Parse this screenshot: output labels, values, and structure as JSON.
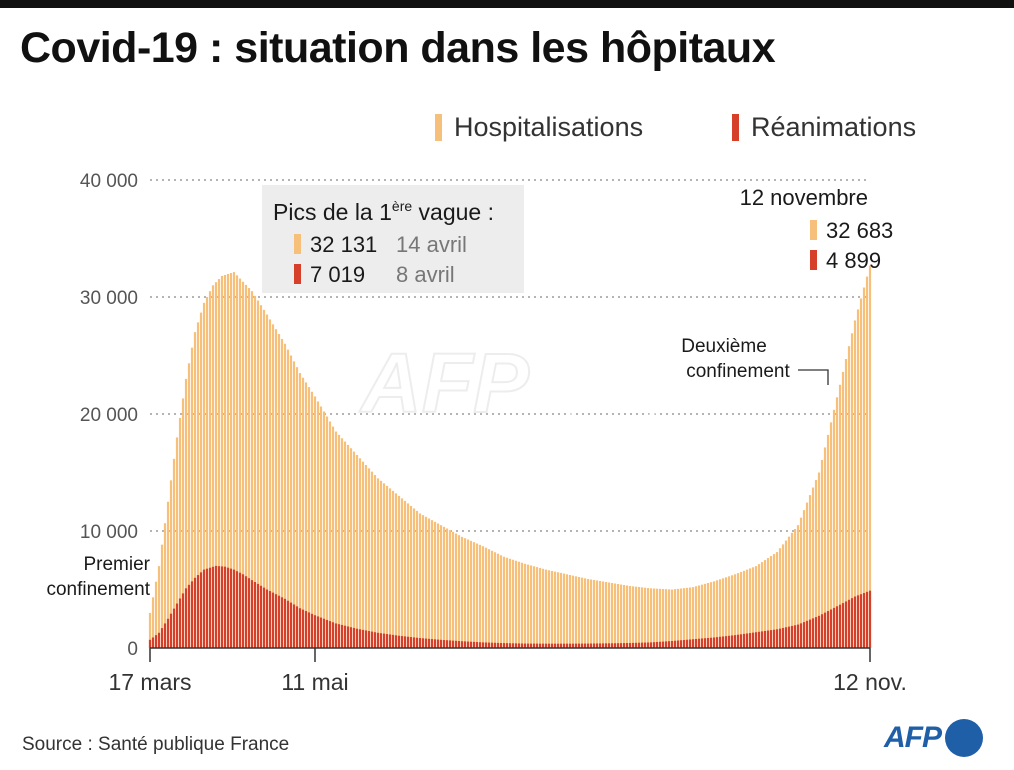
{
  "title": "Covid-19 : situation dans les hôpitaux",
  "source": "Source : Santé publique France",
  "logo_text": "AFP",
  "colors": {
    "hospitalisations": "#f7c07a",
    "reanimations": "#d6402a",
    "gridline": "#888888",
    "logo": "#1f5fa8"
  },
  "callout": {
    "title": "Pics de la 1",
    "title_sup": "ère",
    "title_end": " vague :",
    "hosp_value": "32 131",
    "hosp_date": "14 avril",
    "rea_value": "7 019",
    "rea_date": "8 avril"
  },
  "latest": {
    "date": "12 novembre",
    "hosp_value": "32 683",
    "rea_value": "4 899"
  },
  "annotations": {
    "first_lockdown_line1": "Premier",
    "first_lockdown_line2": "confinement",
    "second_lockdown_line1": "Deuxième",
    "second_lockdown_line2": "confinement"
  },
  "chart_data": {
    "type": "bar",
    "x_start": "17 mars",
    "x_end": "12 nov.",
    "x_tick_labels": [
      "17 mars",
      "11 mai",
      "12 nov."
    ],
    "y_ticks": [
      0,
      10000,
      20000,
      30000,
      40000
    ],
    "y_tick_labels": [
      "0",
      "10 000",
      "20 000",
      "30 000",
      "40 000"
    ],
    "ylim": [
      0,
      40000
    ],
    "grid": "horizontal dotted",
    "legend_position": "top-right",
    "series": [
      {
        "name": "Hospitalisations",
        "color": "#f7c07a",
        "keypoints": [
          [
            "17 mars",
            3000
          ],
          [
            "20 mars",
            7000
          ],
          [
            "23 mars",
            12500
          ],
          [
            "26 mars",
            18000
          ],
          [
            "29 mars",
            23000
          ],
          [
            "1 avril",
            27000
          ],
          [
            "4 avril",
            29500
          ],
          [
            "7 avril",
            31000
          ],
          [
            "10 avril",
            31800
          ],
          [
            "14 avril",
            32131
          ],
          [
            "17 avril",
            31300
          ],
          [
            "20 avril",
            30500
          ],
          [
            "25 avril",
            28500
          ],
          [
            "1 mai",
            26000
          ],
          [
            "6 mai",
            23500
          ],
          [
            "11 mai",
            21500
          ],
          [
            "18 mai",
            18500
          ],
          [
            "25 mai",
            16500
          ],
          [
            "1 juin",
            14500
          ],
          [
            "8 juin",
            13000
          ],
          [
            "15 juin",
            11500
          ],
          [
            "22 juin",
            10500
          ],
          [
            "29 juin",
            9500
          ],
          [
            "6 juil.",
            8700
          ],
          [
            "13 juil.",
            7800
          ],
          [
            "20 juil.",
            7200
          ],
          [
            "27 juil.",
            6700
          ],
          [
            "3 août",
            6300
          ],
          [
            "10 août",
            5900
          ],
          [
            "17 août",
            5600
          ],
          [
            "24 août",
            5300
          ],
          [
            "31 août",
            5100
          ],
          [
            "7 sept.",
            5000
          ],
          [
            "14 sept.",
            5200
          ],
          [
            "21 sept.",
            5700
          ],
          [
            "28 sept.",
            6300
          ],
          [
            "5 oct.",
            7000
          ],
          [
            "12 oct.",
            8200
          ],
          [
            "19 oct.",
            10500
          ],
          [
            "26 oct.",
            15000
          ],
          [
            "2 nov.",
            22500
          ],
          [
            "7 nov.",
            28000
          ],
          [
            "12 nov.",
            32683
          ]
        ]
      },
      {
        "name": "Réanimations",
        "color": "#d6402a",
        "keypoints": [
          [
            "17 mars",
            700
          ],
          [
            "20 mars",
            1300
          ],
          [
            "23 mars",
            2500
          ],
          [
            "26 mars",
            3800
          ],
          [
            "29 mars",
            5100
          ],
          [
            "1 avril",
            6000
          ],
          [
            "4 avril",
            6700
          ],
          [
            "8 avril",
            7019
          ],
          [
            "11 avril",
            6950
          ],
          [
            "14 avril",
            6700
          ],
          [
            "17 avril",
            6300
          ],
          [
            "20 avril",
            5800
          ],
          [
            "25 avril",
            5000
          ],
          [
            "1 mai",
            4200
          ],
          [
            "6 mai",
            3400
          ],
          [
            "11 mai",
            2800
          ],
          [
            "18 mai",
            2100
          ],
          [
            "25 mai",
            1650
          ],
          [
            "1 juin",
            1300
          ],
          [
            "8 juin",
            1050
          ],
          [
            "15 juin",
            850
          ],
          [
            "22 juin",
            700
          ],
          [
            "29 juin",
            580
          ],
          [
            "6 juil.",
            480
          ],
          [
            "13 juil.",
            420
          ],
          [
            "20 juil.",
            380
          ],
          [
            "27 juil.",
            370
          ],
          [
            "3 août",
            370
          ],
          [
            "10 août",
            380
          ],
          [
            "17 août",
            400
          ],
          [
            "24 août",
            430
          ],
          [
            "31 août",
            480
          ],
          [
            "7 sept.",
            600
          ],
          [
            "14 sept.",
            750
          ],
          [
            "21 sept.",
            900
          ],
          [
            "28 sept.",
            1100
          ],
          [
            "5 oct.",
            1350
          ],
          [
            "12 oct.",
            1600
          ],
          [
            "19 oct.",
            2000
          ],
          [
            "26 oct.",
            2750
          ],
          [
            "2 nov.",
            3700
          ],
          [
            "7 nov.",
            4400
          ],
          [
            "12 nov.",
            4899
          ]
        ]
      }
    ]
  }
}
